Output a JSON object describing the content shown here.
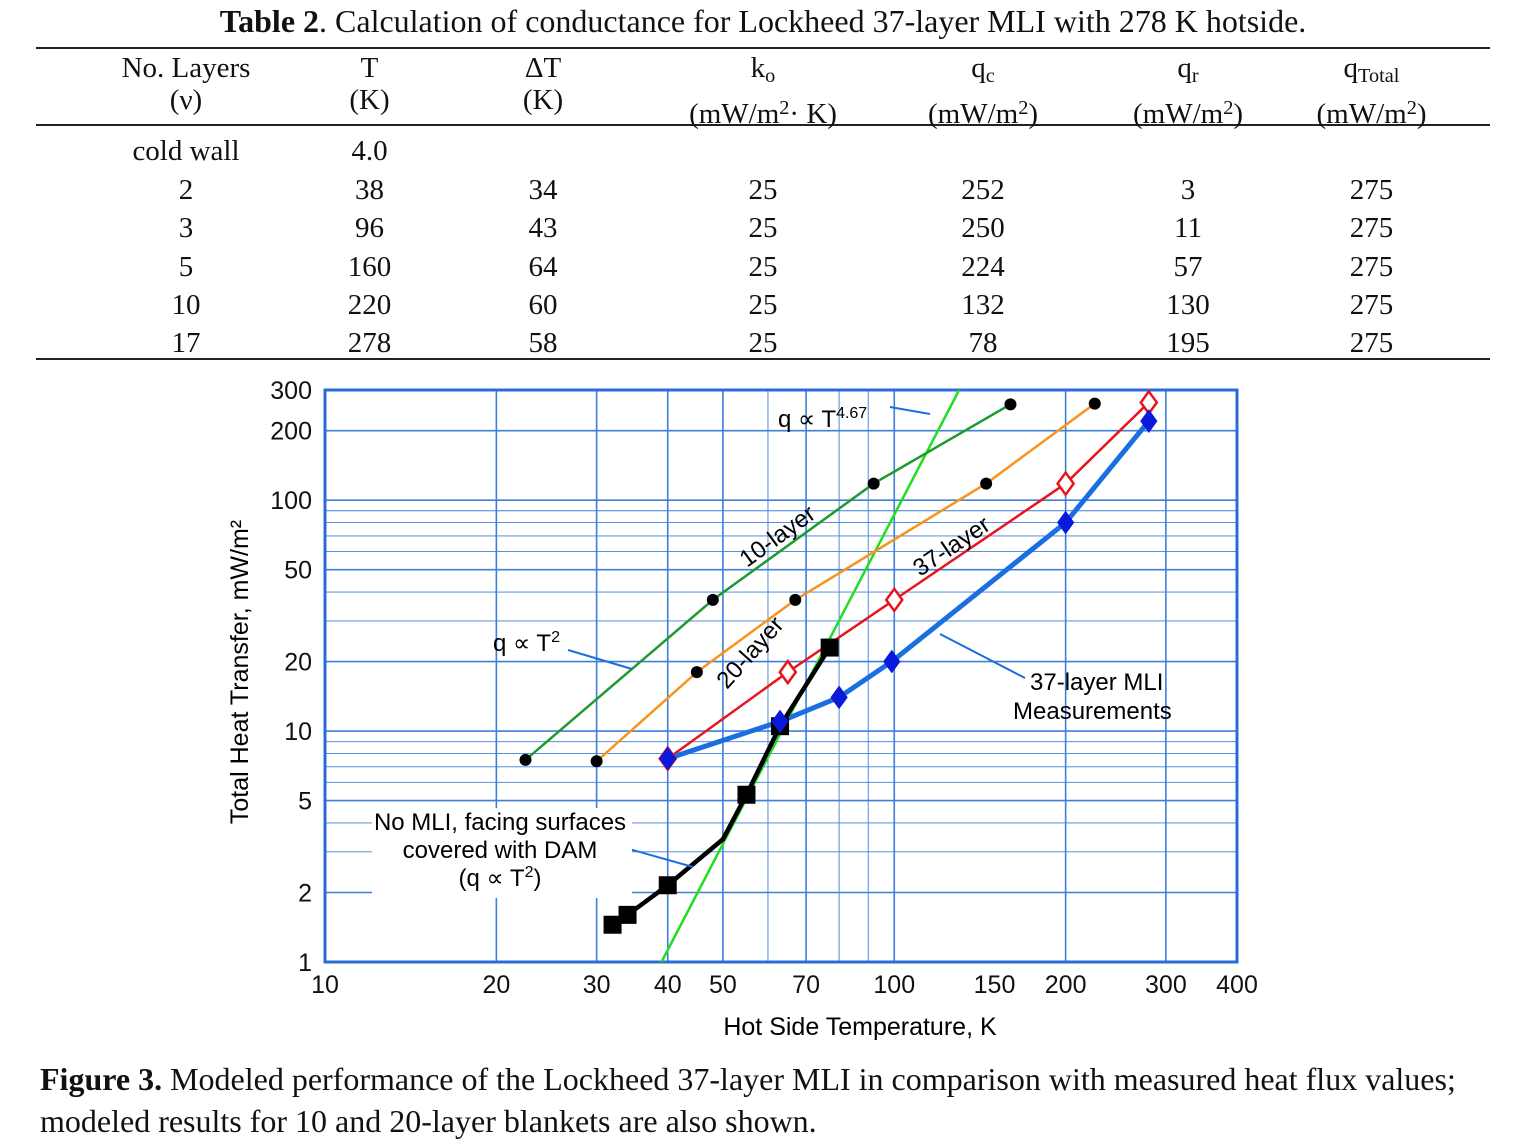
{
  "table": {
    "label": "Table 2",
    "title_rest": ". Calculation of conductance for Lockheed 37-layer MLI with 278 K hotside.",
    "columns": [
      {
        "line1": "No. Layers",
        "line2": "(ν)"
      },
      {
        "line1": "T",
        "line2": "(K)"
      },
      {
        "line1": "ΔT",
        "line2": "(K)"
      },
      {
        "sym": "k",
        "sub": "o",
        "line2a": "(mW/m",
        "sup": "2",
        "line2b": "· K)"
      },
      {
        "sym": "q",
        "sub": "c",
        "line2a": "(mW/m",
        "sup": "2",
        "line2b": ")"
      },
      {
        "sym": "q",
        "sub": "r",
        "line2a": "(mW/m",
        "sup": "2",
        "line2b": ")"
      },
      {
        "sym": "q",
        "sub": "Total",
        "line2a": "(mW/m",
        "sup": "2",
        "line2b": ")"
      }
    ],
    "rows": [
      [
        "cold wall",
        "4.0",
        "",
        "",
        "",
        "",
        ""
      ],
      [
        "2",
        "38",
        "34",
        "25",
        "252",
        "3",
        "275"
      ],
      [
        "3",
        "96",
        "43",
        "25",
        "250",
        "11",
        "275"
      ],
      [
        "5",
        "160",
        "64",
        "25",
        "224",
        "57",
        "275"
      ],
      [
        "10",
        "220",
        "60",
        "25",
        "132",
        "130",
        "275"
      ],
      [
        "17",
        "278",
        "58",
        "25",
        "78",
        "195",
        "275"
      ]
    ]
  },
  "figure": {
    "label": "Figure 3.",
    "caption": " Modeled performance of the Lockheed 37-layer MLI in comparison with measured heat flux values; modeled results for 10 and 20-layer blankets are also shown."
  },
  "chart_data": {
    "type": "line",
    "xlabel": "Hot Side Temperature,  K",
    "ylabel": "Total Heat Transfer, mW/m²",
    "xscale": "log",
    "yscale": "log",
    "xlim": [
      10,
      400
    ],
    "ylim": [
      1,
      300
    ],
    "x_ticks": [
      10,
      20,
      30,
      40,
      50,
      70,
      100,
      150,
      200,
      300,
      400
    ],
    "y_ticks": [
      1,
      2,
      5,
      10,
      20,
      50,
      100,
      200,
      300
    ],
    "grid": true,
    "colors": {
      "ten": "#1e9a2e",
      "twenty": "#f7941d",
      "thirtyseven": "#e8141c",
      "meas": "#1a6fe0",
      "meas_marker": "#0a1adb",
      "t467": "#22dd22",
      "nomli": "#000000",
      "grid": "#3d7fd9",
      "frame": "#2a6cd6"
    },
    "series": [
      {
        "name": "10-layer",
        "points": [
          [
            22.5,
            7.5
          ],
          [
            48,
            37
          ],
          [
            92,
            118
          ],
          [
            160,
            260
          ]
        ]
      },
      {
        "name": "20-layer",
        "points": [
          [
            30,
            7.4
          ],
          [
            45,
            18
          ],
          [
            67,
            37
          ],
          [
            145,
            118
          ],
          [
            225,
            262
          ]
        ]
      },
      {
        "name": "37-layer",
        "points": [
          [
            40,
            7.6
          ],
          [
            65,
            18
          ],
          [
            100,
            37
          ],
          [
            200,
            118
          ],
          [
            280,
            265
          ]
        ]
      },
      {
        "name": "37-layer MLI Measurements",
        "points": [
          [
            40,
            7.6
          ],
          [
            63,
            11
          ],
          [
            80,
            14
          ],
          [
            99,
            20
          ],
          [
            200,
            80
          ],
          [
            280,
            220
          ]
        ]
      },
      {
        "name": "No MLI, facing surfaces covered with DAM",
        "points": [
          [
            32,
            1.45
          ],
          [
            34,
            1.6
          ],
          [
            40,
            2.15
          ],
          [
            50,
            3.4
          ],
          [
            55,
            5.3
          ],
          [
            63,
            10.5
          ],
          [
            77,
            23
          ]
        ]
      },
      {
        "points": [
          [
            39,
            1.0
          ],
          [
            130,
            300
          ]
        ]
      }
    ],
    "annotations": [
      "q ∝ T",
      "4.67",
      "q ∝ T",
      "2",
      "10-layer",
      "20-layer",
      "37-layer",
      "37-layer MLI",
      "Measurements",
      "No MLI, facing surfaces",
      "covered with DAM",
      "(q ∝ T",
      "2",
      ")"
    ]
  }
}
